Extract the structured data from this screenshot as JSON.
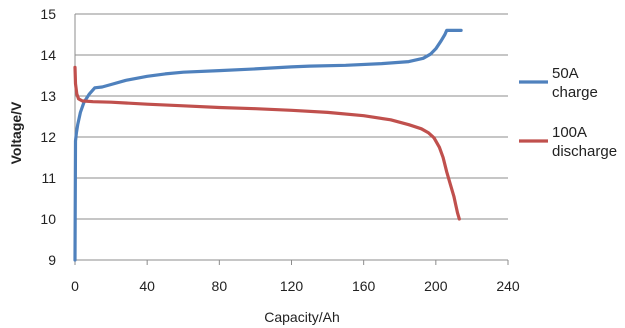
{
  "chart_data": {
    "type": "line",
    "title": "",
    "xlabel": "Capacity/Ah",
    "ylabel": "Voltage/V",
    "xlim": [
      0,
      240
    ],
    "ylim": [
      9,
      15
    ],
    "x_ticks": [
      0,
      40,
      80,
      120,
      160,
      200,
      240
    ],
    "y_ticks": [
      9,
      10,
      11,
      12,
      13,
      14,
      15
    ],
    "grid": "horizontal",
    "legend_position": "right",
    "series": [
      {
        "name": "50A charge",
        "color": "#4f81bd",
        "x": [
          0,
          0.3,
          0.8,
          1.5,
          3,
          5,
          8,
          11,
          15,
          20,
          28,
          40,
          50,
          60,
          80,
          100,
          120,
          130,
          150,
          170,
          185,
          193,
          197,
          200,
          203,
          205,
          206,
          210,
          214
        ],
        "y": [
          9.0,
          11.9,
          12.1,
          12.3,
          12.6,
          12.85,
          13.05,
          13.2,
          13.22,
          13.28,
          13.38,
          13.48,
          13.54,
          13.58,
          13.62,
          13.66,
          13.71,
          13.73,
          13.75,
          13.79,
          13.84,
          13.92,
          14.02,
          14.15,
          14.35,
          14.5,
          14.6,
          14.6,
          14.6
        ]
      },
      {
        "name": "100A discharge",
        "color": "#c0504d",
        "x": [
          0,
          0.3,
          1,
          2,
          4,
          10,
          20,
          40,
          60,
          80,
          100,
          120,
          140,
          160,
          175,
          185,
          192,
          196,
          199,
          202,
          204,
          206,
          208,
          210,
          211,
          212,
          213
        ],
        "y": [
          13.7,
          13.3,
          13.05,
          12.93,
          12.88,
          12.86,
          12.85,
          12.8,
          12.76,
          12.72,
          12.69,
          12.65,
          12.6,
          12.52,
          12.42,
          12.3,
          12.2,
          12.1,
          11.98,
          11.75,
          11.5,
          11.15,
          10.85,
          10.55,
          10.35,
          10.15,
          10.0
        ]
      }
    ]
  }
}
